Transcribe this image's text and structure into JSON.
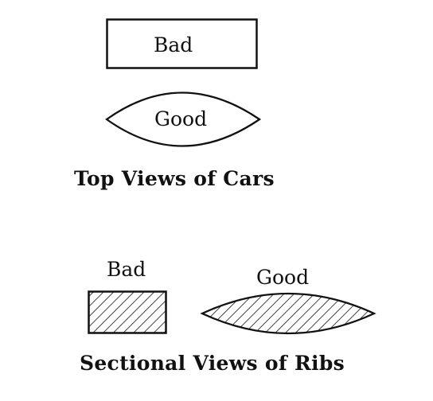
{
  "top_views": {
    "bad_label": "Bad",
    "good_label": "Good",
    "caption": "Top Views of Cars"
  },
  "sectional_views": {
    "bad_label": "Bad",
    "good_label": "Good",
    "caption": "Sectional Views of Ribs"
  }
}
